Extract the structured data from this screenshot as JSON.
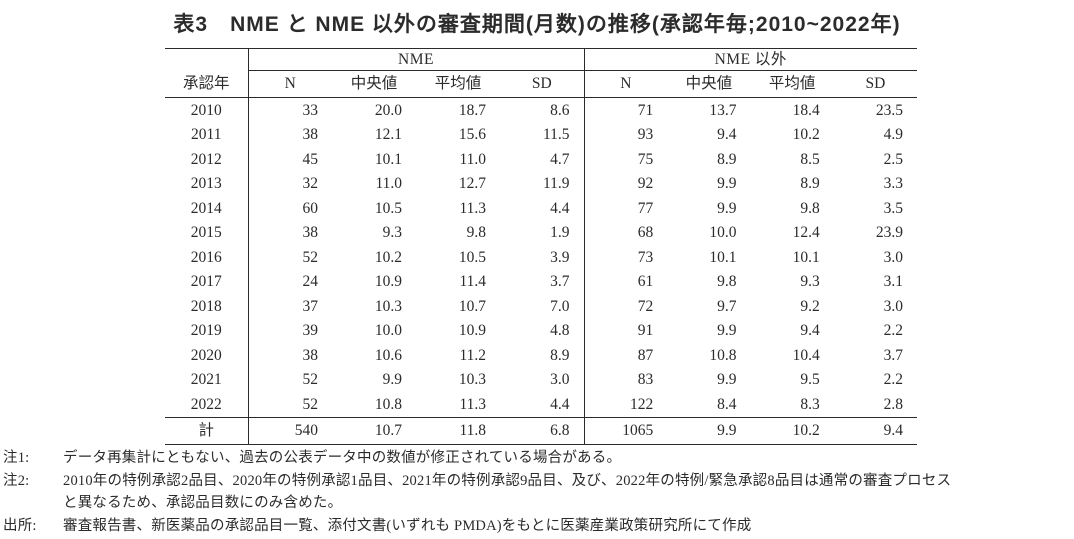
{
  "title": "表3　NME と NME 以外の審査期間(月数)の推移(承認年毎;2010~2022年)",
  "colors": {
    "text": "#2b2b2b",
    "line": "#2b2b2b",
    "background": "#ffffff"
  },
  "table": {
    "year_header": "承認年",
    "groups": [
      {
        "label": "NME"
      },
      {
        "label": "NME 以外"
      }
    ],
    "sub_headers": [
      "N",
      "中央値",
      "平均値",
      "SD"
    ],
    "rows": [
      {
        "year": "2010",
        "nme": [
          "33",
          "20.0",
          "18.7",
          "8.6"
        ],
        "non_nme": [
          "71",
          "13.7",
          "18.4",
          "23.5"
        ]
      },
      {
        "year": "2011",
        "nme": [
          "38",
          "12.1",
          "15.6",
          "11.5"
        ],
        "non_nme": [
          "93",
          "9.4",
          "10.2",
          "4.9"
        ]
      },
      {
        "year": "2012",
        "nme": [
          "45",
          "10.1",
          "11.0",
          "4.7"
        ],
        "non_nme": [
          "75",
          "8.9",
          "8.5",
          "2.5"
        ]
      },
      {
        "year": "2013",
        "nme": [
          "32",
          "11.0",
          "12.7",
          "11.9"
        ],
        "non_nme": [
          "92",
          "9.9",
          "8.9",
          "3.3"
        ]
      },
      {
        "year": "2014",
        "nme": [
          "60",
          "10.5",
          "11.3",
          "4.4"
        ],
        "non_nme": [
          "77",
          "9.9",
          "9.8",
          "3.5"
        ]
      },
      {
        "year": "2015",
        "nme": [
          "38",
          "9.3",
          "9.8",
          "1.9"
        ],
        "non_nme": [
          "68",
          "10.0",
          "12.4",
          "23.9"
        ]
      },
      {
        "year": "2016",
        "nme": [
          "52",
          "10.2",
          "10.5",
          "3.9"
        ],
        "non_nme": [
          "73",
          "10.1",
          "10.1",
          "3.0"
        ]
      },
      {
        "year": "2017",
        "nme": [
          "24",
          "10.9",
          "11.4",
          "3.7"
        ],
        "non_nme": [
          "61",
          "9.8",
          "9.3",
          "3.1"
        ]
      },
      {
        "year": "2018",
        "nme": [
          "37",
          "10.3",
          "10.7",
          "7.0"
        ],
        "non_nme": [
          "72",
          "9.7",
          "9.2",
          "3.0"
        ]
      },
      {
        "year": "2019",
        "nme": [
          "39",
          "10.0",
          "10.9",
          "4.8"
        ],
        "non_nme": [
          "91",
          "9.9",
          "9.4",
          "2.2"
        ]
      },
      {
        "year": "2020",
        "nme": [
          "38",
          "10.6",
          "11.2",
          "8.9"
        ],
        "non_nme": [
          "87",
          "10.8",
          "10.4",
          "3.7"
        ]
      },
      {
        "year": "2021",
        "nme": [
          "52",
          "9.9",
          "10.3",
          "3.0"
        ],
        "non_nme": [
          "83",
          "9.9",
          "9.5",
          "2.2"
        ]
      },
      {
        "year": "2022",
        "nme": [
          "52",
          "10.8",
          "11.3",
          "4.4"
        ],
        "non_nme": [
          "122",
          "8.4",
          "8.3",
          "2.8"
        ]
      }
    ],
    "total_row": {
      "year": "計",
      "nme": [
        "540",
        "10.7",
        "11.8",
        "6.8"
      ],
      "non_nme": [
        "1065",
        "9.9",
        "10.2",
        "9.4"
      ]
    }
  },
  "notes": [
    {
      "label": "注1:",
      "lines": [
        "データ再集計にともない、過去の公表データ中の数値が修正されている場合がある。"
      ]
    },
    {
      "label": "注2:",
      "lines": [
        "2010年の特例承認2品目、2020年の特例承認1品目、2021年の特例承認9品目、及び、2022年の特例/緊急承認8品目は通常の審査プロセス",
        "と異なるため、承認品目数にのみ含めた。"
      ]
    },
    {
      "label": "出所:",
      "lines": [
        "審査報告書、新医薬品の承認品目一覧、添付文書(いずれも PMDA)をもとに医薬産業政策研究所にて作成"
      ]
    }
  ]
}
